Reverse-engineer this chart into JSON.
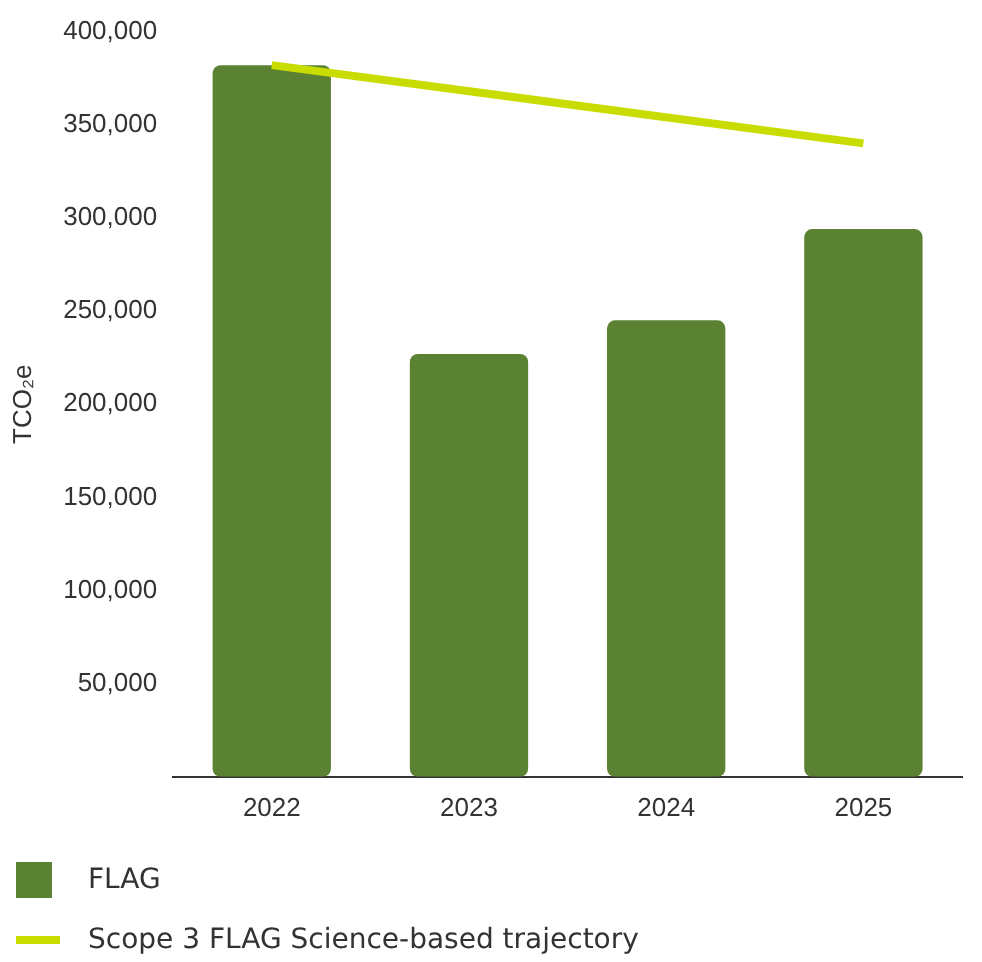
{
  "chart_data": {
    "type": "bar",
    "ylabel": "TCO₂e",
    "categories": [
      "2022",
      "2023",
      "2024",
      "2025"
    ],
    "series": [
      {
        "name": "FLAG",
        "color": "#5a8232",
        "values": [
          382000,
          227000,
          245000,
          294000
        ]
      },
      {
        "name": "Scope 3 FLAG Science-based trajectory",
        "type": "line",
        "color": "#c8dc00",
        "values": [
          382000,
          null,
          null,
          340000
        ]
      }
    ],
    "ylim": [
      0,
      400000
    ],
    "yticks": [
      {
        "value": 50000,
        "label": "50,000"
      },
      {
        "value": 100000,
        "label": "100,000"
      },
      {
        "value": 150000,
        "label": "150,000"
      },
      {
        "value": 200000,
        "label": "200,000"
      },
      {
        "value": 250000,
        "label": "250,000"
      },
      {
        "value": 300000,
        "label": "300,000"
      },
      {
        "value": 350000,
        "label": "350,000"
      },
      {
        "value": 400000,
        "label": "400,000"
      }
    ],
    "grid": false,
    "legend": "bottom",
    "marker": "none"
  }
}
